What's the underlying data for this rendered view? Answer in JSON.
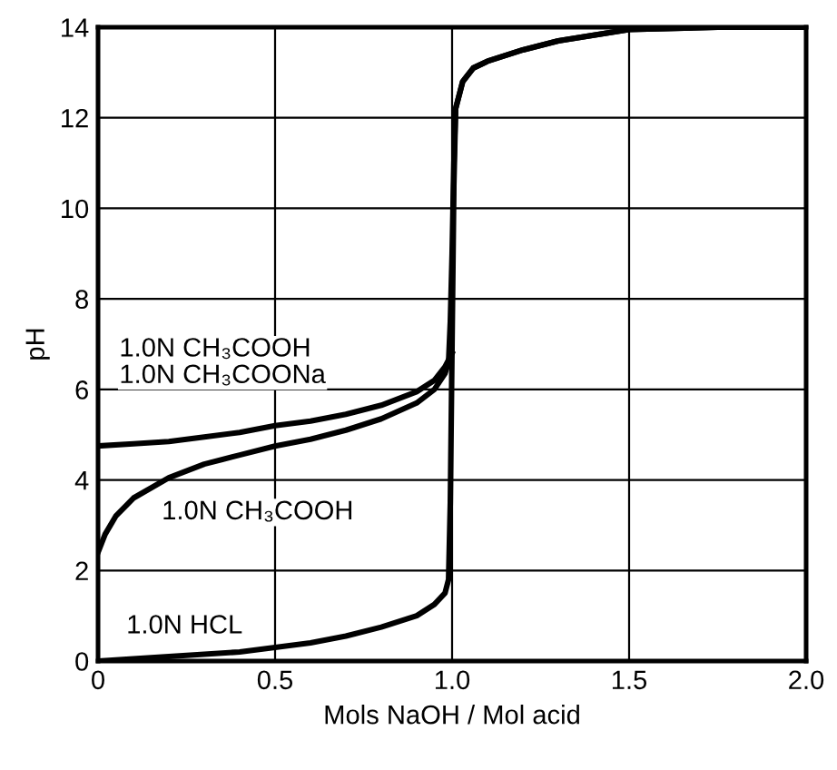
{
  "chart_data": {
    "type": "line",
    "xlabel": "Mols NaOH / Mol acid",
    "ylabel": "pH",
    "xlim": [
      0,
      2
    ],
    "ylim": [
      0,
      14
    ],
    "xticks": [
      0,
      0.5,
      {
        "value": 1,
        "label": "1.0"
      },
      1.5,
      {
        "value": 2,
        "label": "2.0"
      }
    ],
    "yticks": [
      0,
      2,
      4,
      6,
      8,
      10,
      12,
      14
    ],
    "grid": true,
    "legend": false,
    "marker": "none",
    "line_style": "solid",
    "series": [
      {
        "name": "1.0N CH₃COOH\n1.0N CH₃COONa",
        "color": "#000000",
        "x": [
          0,
          0.1,
          0.2,
          0.3,
          0.4,
          0.5,
          0.6,
          0.7,
          0.8,
          0.9,
          0.95,
          0.98,
          1.0
        ],
        "values": [
          4.75,
          4.8,
          4.85,
          4.95,
          5.05,
          5.2,
          5.3,
          5.45,
          5.65,
          5.95,
          6.2,
          6.5,
          6.8
        ]
      },
      {
        "name": "1.0N CH₃COOH",
        "color": "#000000",
        "x": [
          0,
          0.02,
          0.05,
          0.1,
          0.2,
          0.3,
          0.4,
          0.5,
          0.6,
          0.7,
          0.8,
          0.9,
          0.95,
          0.98,
          0.99,
          0.995,
          1.0,
          1.005,
          1.01,
          1.03,
          1.06,
          1.1,
          1.2,
          1.3,
          1.5,
          1.75,
          2.0
        ],
        "values": [
          2.4,
          2.8,
          3.2,
          3.6,
          4.05,
          4.35,
          4.55,
          4.75,
          4.9,
          5.1,
          5.35,
          5.7,
          6.0,
          6.35,
          6.6,
          7.5,
          9.0,
          11.0,
          12.2,
          12.8,
          13.1,
          13.25,
          13.5,
          13.7,
          13.95,
          14.0,
          14.0
        ]
      },
      {
        "name": "1.0N HCL",
        "color": "#000000",
        "x": [
          0,
          0.1,
          0.2,
          0.3,
          0.4,
          0.5,
          0.6,
          0.7,
          0.8,
          0.9,
          0.95,
          0.98,
          0.99,
          0.995,
          1.0,
          1.005,
          1.01,
          1.03,
          1.06,
          1.1,
          1.2,
          1.3,
          1.5,
          1.75,
          2.0
        ],
        "values": [
          0,
          0.05,
          0.1,
          0.15,
          0.2,
          0.3,
          0.4,
          0.55,
          0.75,
          1.0,
          1.25,
          1.5,
          1.8,
          3.5,
          7.0,
          10.5,
          12.2,
          12.8,
          13.1,
          13.25,
          13.5,
          13.7,
          13.95,
          14.0,
          14.0
        ]
      }
    ]
  }
}
